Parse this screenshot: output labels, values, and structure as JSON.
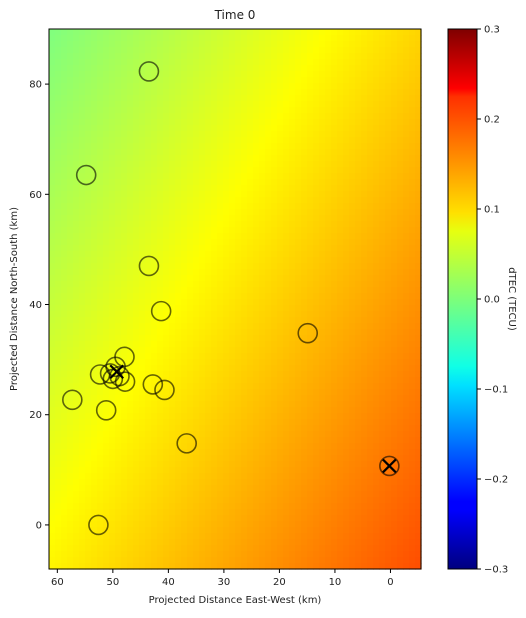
{
  "chart_data": {
    "type": "heatmap",
    "title": "Time 0",
    "xlabel": "Projected Distance East-West (km)",
    "ylabel": "Projected Distance North-South (km)",
    "xlim": [
      61.5,
      -5.5
    ],
    "ylim": [
      -8,
      90
    ],
    "x_ticks": [
      60,
      50,
      40,
      30,
      20,
      10,
      0
    ],
    "y_ticks": [
      0,
      20,
      40,
      60,
      80
    ],
    "colorbar": {
      "label": "dTEC (TECU)",
      "range": [
        -0.3,
        0.3
      ],
      "ticks": [
        "−0.3",
        "−0.2",
        "−0.1",
        "0.0",
        "0.1",
        "0.2",
        "0.3"
      ],
      "tick_values": [
        -0.3,
        -0.2,
        -0.1,
        0.0,
        0.1,
        0.2,
        0.3
      ],
      "colormap": "jet"
    },
    "field": {
      "corner_values": {
        "top_left": 0.0,
        "top_right": 0.1,
        "bottom_left": 0.08,
        "bottom_right": 0.18
      }
    },
    "circle_markers": [
      {
        "x": 43.5,
        "y": 82.3
      },
      {
        "x": 54.8,
        "y": 63.5
      },
      {
        "x": 43.5,
        "y": 47.0
      },
      {
        "x": 41.3,
        "y": 38.8
      },
      {
        "x": 14.9,
        "y": 34.8
      },
      {
        "x": 47.9,
        "y": 30.5
      },
      {
        "x": 50.5,
        "y": 27.5
      },
      {
        "x": 52.3,
        "y": 27.3
      },
      {
        "x": 49.5,
        "y": 28.7
      },
      {
        "x": 48.8,
        "y": 27.0
      },
      {
        "x": 50.0,
        "y": 26.5
      },
      {
        "x": 47.8,
        "y": 26.0
      },
      {
        "x": 42.8,
        "y": 25.5
      },
      {
        "x": 40.7,
        "y": 24.5
      },
      {
        "x": 57.3,
        "y": 22.7
      },
      {
        "x": 51.2,
        "y": 20.8
      },
      {
        "x": 36.7,
        "y": 14.8
      },
      {
        "x": 52.6,
        "y": 0.0
      },
      {
        "x": 0.2,
        "y": 10.7
      }
    ],
    "x_markers": [
      {
        "x": 49.3,
        "y": 27.8
      },
      {
        "x": 0.2,
        "y": 10.7
      }
    ]
  }
}
